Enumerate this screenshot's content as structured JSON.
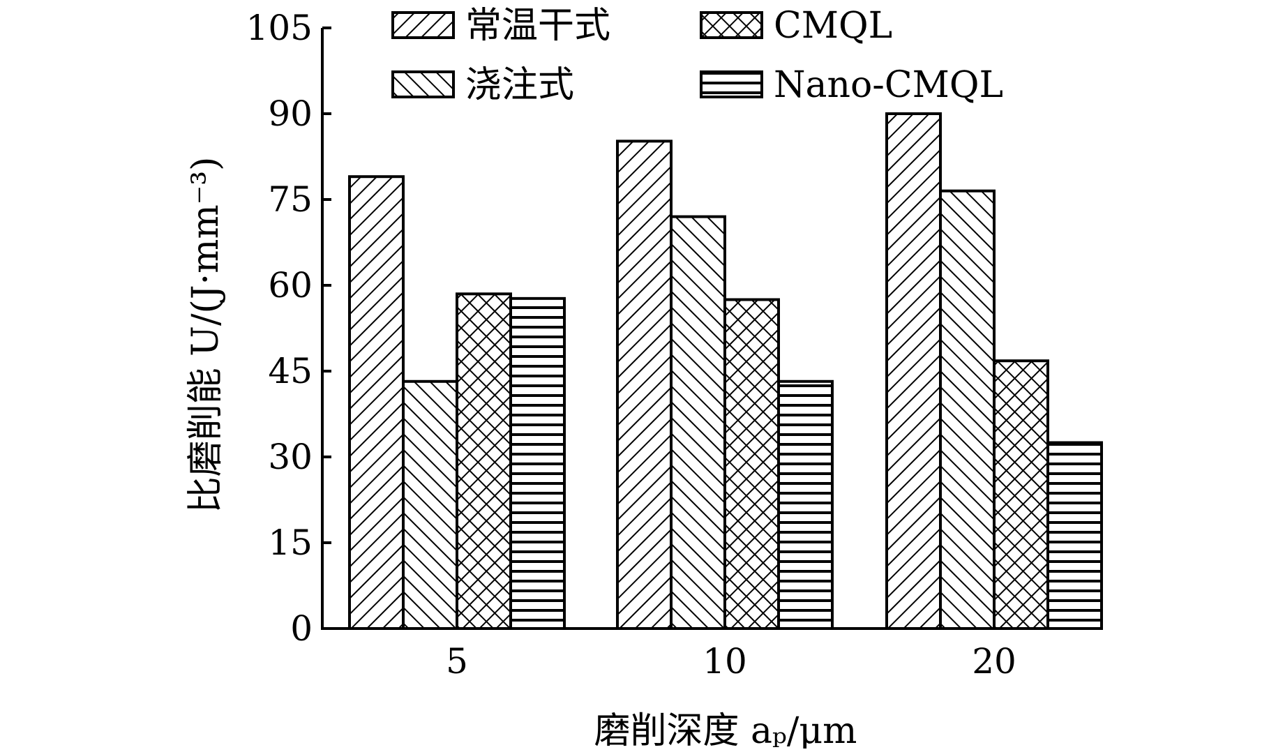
{
  "chart_data": {
    "type": "bar",
    "categories": [
      "5",
      "10",
      "20"
    ],
    "series": [
      {
        "name": "常温干式",
        "values": [
          79,
          85.2,
          90
        ],
        "pattern": "diag-forward"
      },
      {
        "name": "浇注式",
        "values": [
          43.2,
          72,
          76.5
        ],
        "pattern": "diag-back"
      },
      {
        "name": "CMQL",
        "values": [
          58.5,
          57.5,
          46.8
        ],
        "pattern": "crosshatch"
      },
      {
        "name": "Nano-CMQL",
        "values": [
          57.7,
          43.2,
          32.5
        ],
        "pattern": "horizontal"
      }
    ],
    "yticks": [
      "0",
      "15",
      "30",
      "45",
      "60",
      "75",
      "90",
      "105"
    ],
    "ylim": [
      0,
      105
    ],
    "xlabel": "磨削深度 aₚ/μm",
    "ylabel": "比磨削能 U/(J·mm⁻³)",
    "legend_position": "top",
    "grid": false,
    "colors": {
      "stroke": "#000000",
      "fill": "#ffffff"
    }
  }
}
